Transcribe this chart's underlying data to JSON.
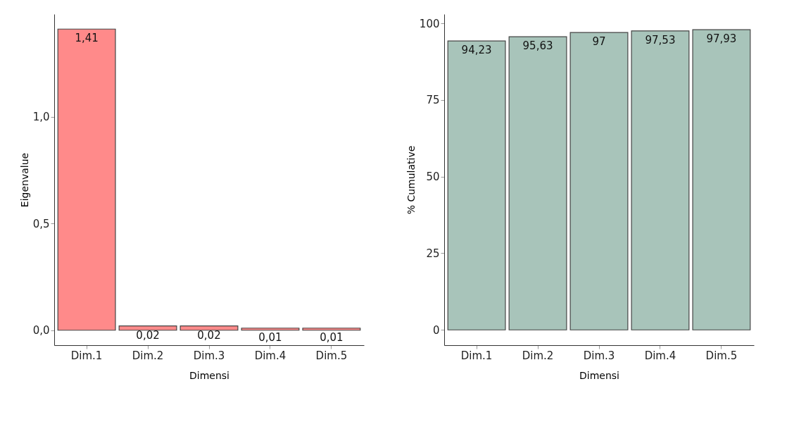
{
  "chart_data": [
    {
      "type": "bar",
      "categories": [
        "Dim.1",
        "Dim.2",
        "Dim.3",
        "Dim.4",
        "Dim.5"
      ],
      "values": [
        1.41,
        0.02,
        0.02,
        0.01,
        0.01
      ],
      "value_labels": [
        "1,41",
        "0,02",
        "0,02",
        "0,01",
        "0,01"
      ],
      "color": "#ff8a8a",
      "xlabel": "Dimensi",
      "ylabel": "Eigenvalue",
      "ylim": [
        -0.07,
        1.48
      ],
      "yticks": [
        {
          "value": 0,
          "label": "0,0"
        },
        {
          "value": 0.5,
          "label": "0,5"
        },
        {
          "value": 1,
          "label": "1,0"
        }
      ],
      "grid": false
    },
    {
      "type": "bar",
      "categories": [
        "Dim.1",
        "Dim.2",
        "Dim.3",
        "Dim.4",
        "Dim.5"
      ],
      "values": [
        94.23,
        95.63,
        97,
        97.53,
        97.93
      ],
      "value_labels": [
        "94,23",
        "95,63",
        "97",
        "97,53",
        "97,93"
      ],
      "color": "#a8c4ba",
      "xlabel": "Dimensi",
      "ylabel": "% Cumulative",
      "ylim": [
        -5,
        103
      ],
      "yticks": [
        0,
        25,
        50,
        75,
        100
      ],
      "grid": false
    }
  ]
}
